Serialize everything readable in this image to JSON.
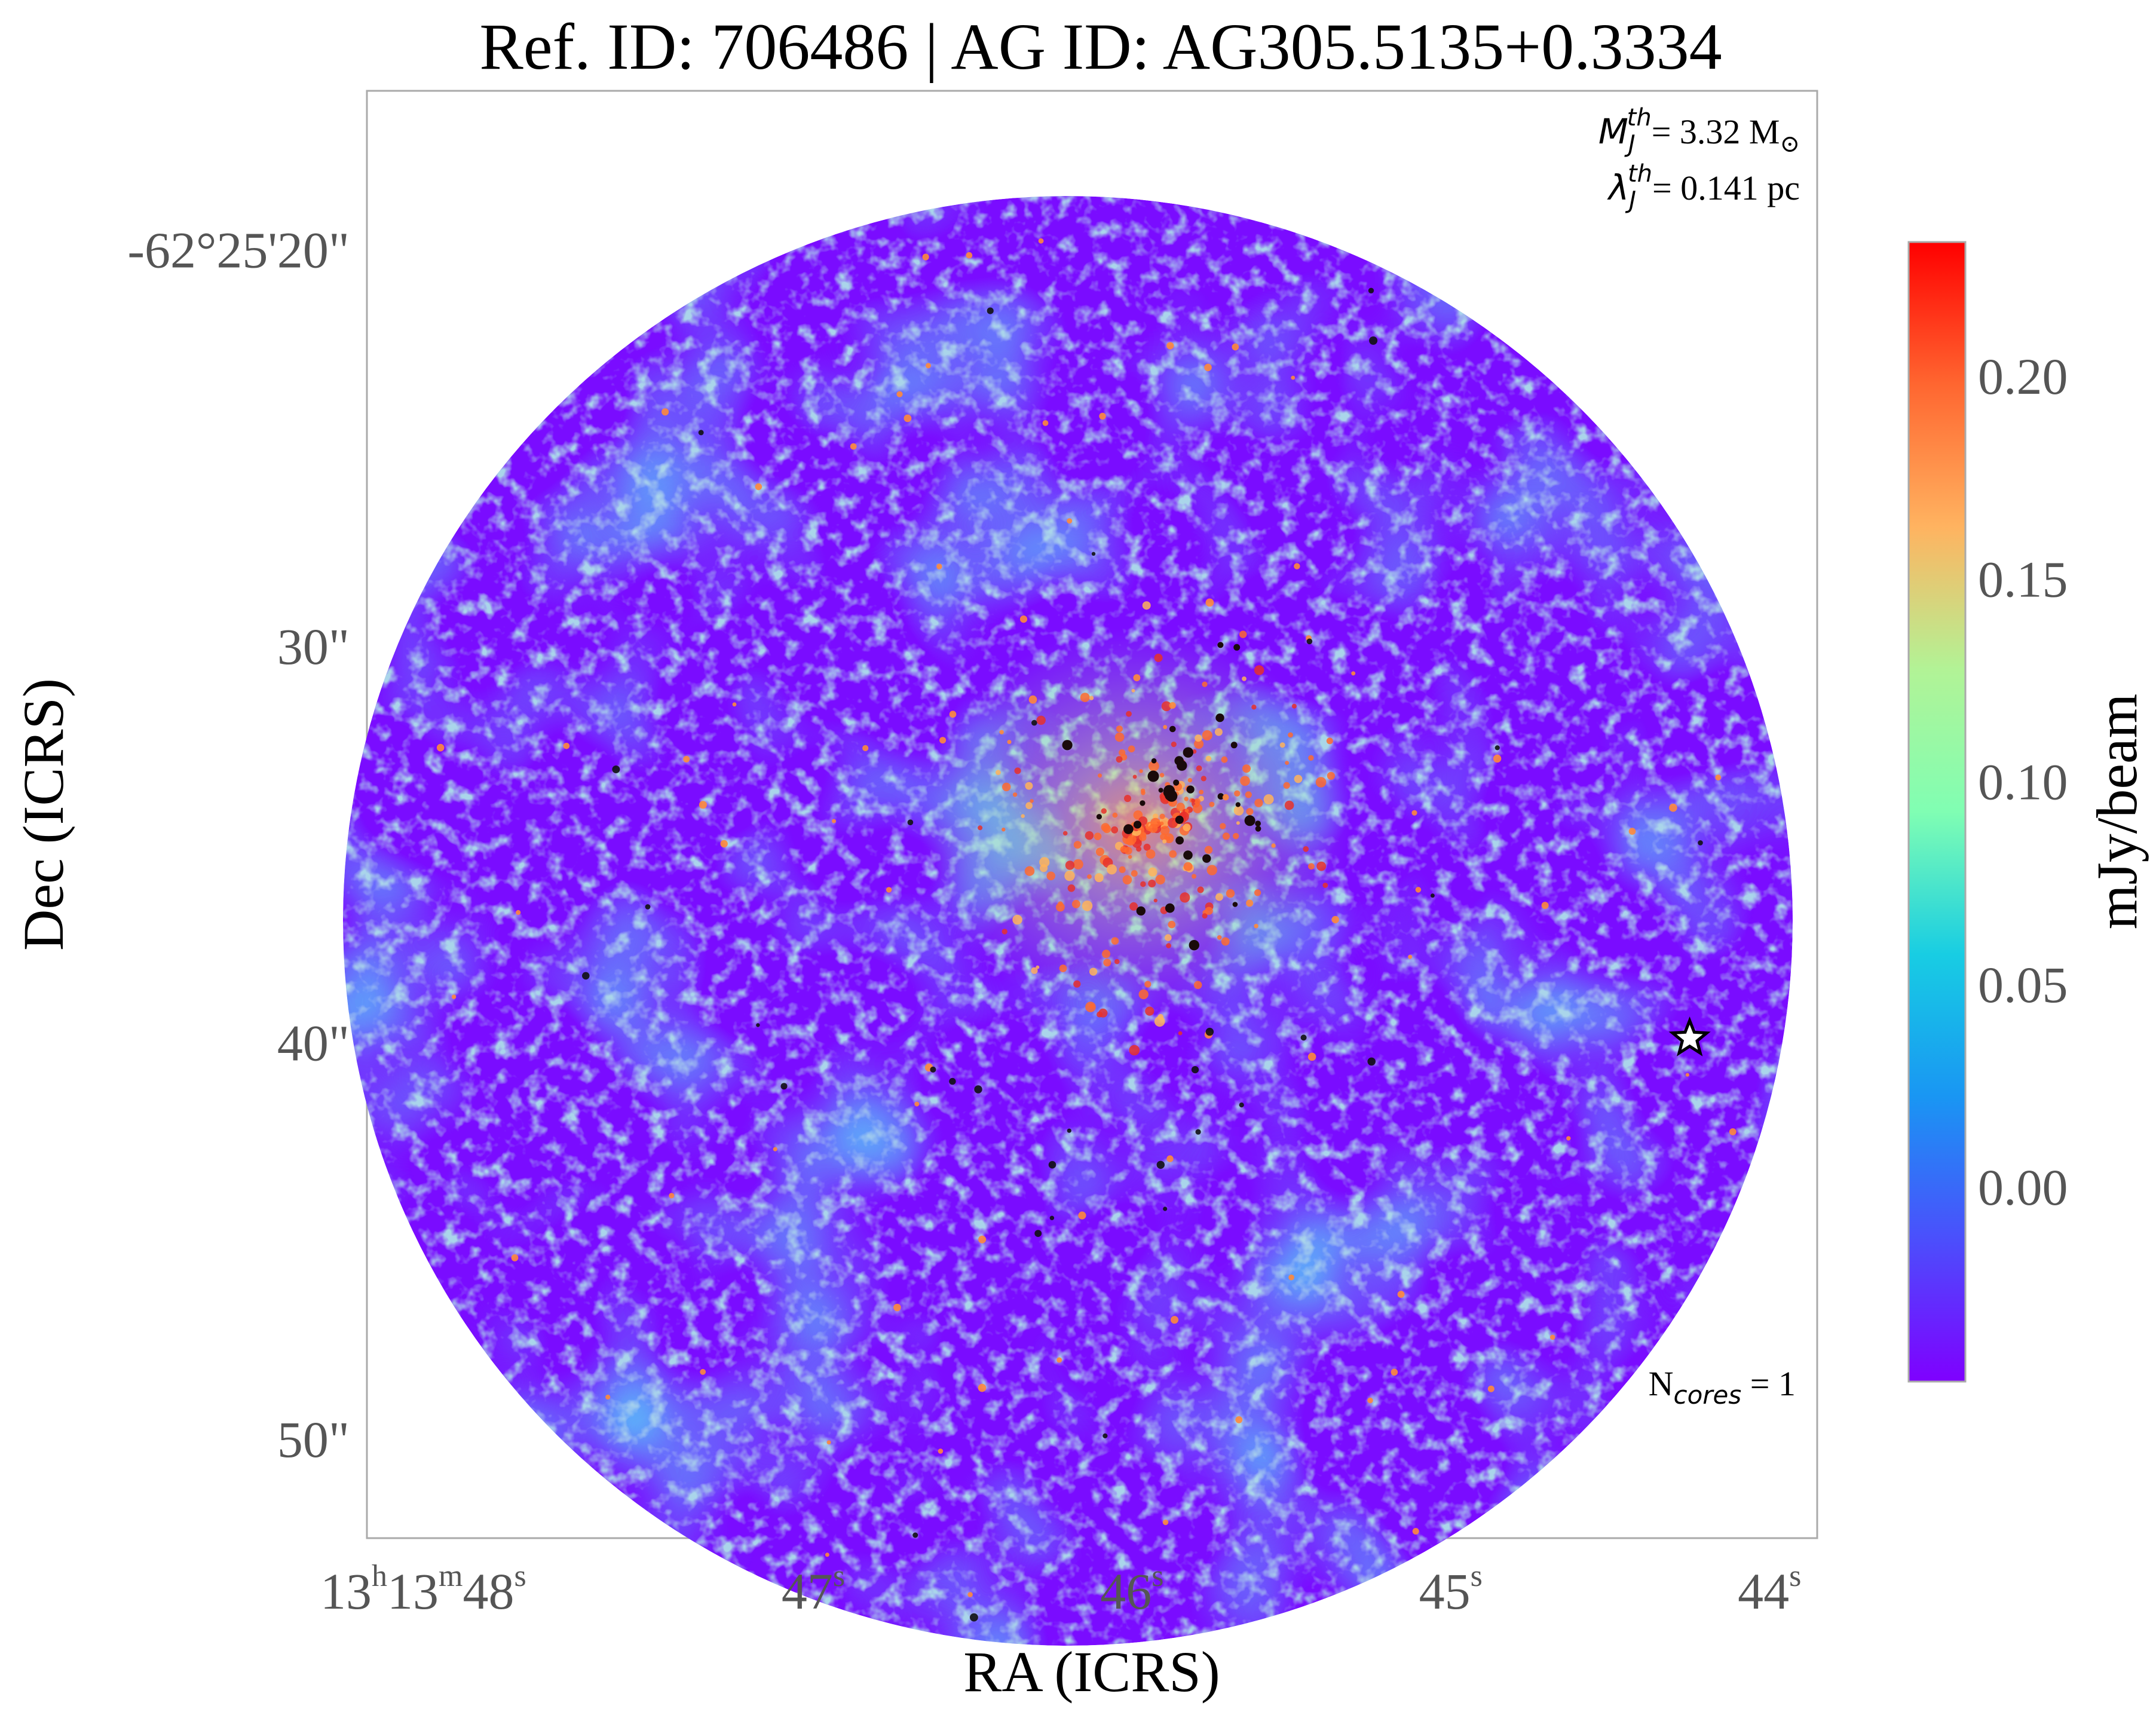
{
  "chart_data": {
    "type": "heatmap",
    "title": "Ref. ID: 706486 | AG ID: AG305.5135+0.3334",
    "xlabel": "RA (ICRS)",
    "ylabel": "Dec (ICRS)",
    "x_ticks": [
      {
        "h": "13",
        "m": "13",
        "s": "48"
      },
      {
        "s": "47"
      },
      {
        "s": "46"
      },
      {
        "s": "45"
      },
      {
        "s": "44"
      }
    ],
    "x_tick_values_sec": [
      48,
      47,
      46,
      45,
      44
    ],
    "xlim_sec": [
      48.5,
      43.95
    ],
    "y_ticks": [
      "-62°25'20\"",
      "30\"",
      "40\"",
      "50\""
    ],
    "y_tick_values_arcsec": [
      20,
      30,
      40,
      50
    ],
    "ylim_arcsec": [
      16.0,
      52.5
    ],
    "colorbar": {
      "label": "mJy/beam",
      "ticks": [
        "0.20",
        "0.15",
        "0.10",
        "0.05",
        "0.00"
      ],
      "tick_values": [
        0.2,
        0.15,
        0.1,
        0.05,
        0.0
      ],
      "range": [
        -0.048,
        0.233
      ],
      "colormap": "rainbow"
    },
    "annotations": {
      "mass_label": "M",
      "mass_sub": "J",
      "mass_sup": "th",
      "mass_value": "= 3.32 M",
      "mass_unit_symbol": "⊙",
      "lambda_label": "λ",
      "lambda_sub": "J",
      "lambda_sup": "th",
      "lambda_value": "= 0.141 pc",
      "ncores_prefix": "N",
      "ncores_sub": "cores",
      "ncores_value": " = 1"
    },
    "core_marker": {
      "type": "star",
      "ra_sec": 44.35,
      "dec_arcsec": 39.9
    },
    "grid": false
  }
}
